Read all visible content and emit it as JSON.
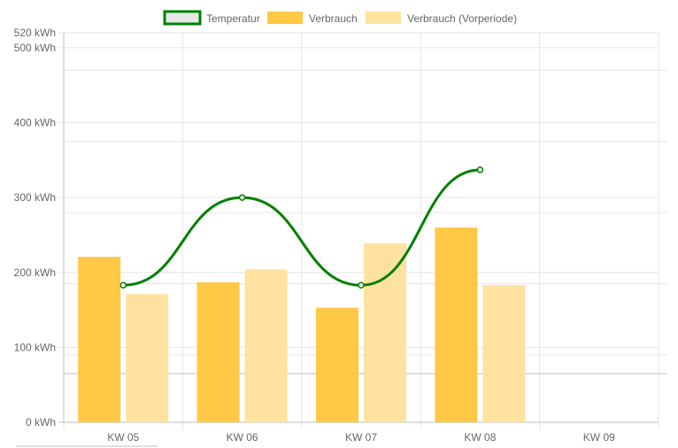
{
  "chart_data": {
    "type": "bar",
    "categories": [
      "KW 05",
      "KW 06",
      "KW 07",
      "KW 08",
      "KW 09"
    ],
    "series": [
      {
        "name": "Temperatur",
        "type": "line",
        "values": [
          183,
          300,
          183,
          337,
          null
        ],
        "color": "#008000"
      },
      {
        "name": "Verbrauch",
        "type": "bar",
        "values": [
          221,
          187,
          153,
          260,
          null
        ],
        "color": "#FFC845"
      },
      {
        "name": "Verbrauch (Vorperiode)",
        "type": "bar",
        "values": [
          171,
          204,
          239,
          183,
          null
        ],
        "color": "#FFE29F"
      }
    ],
    "y_ticks": [
      "0 kWh",
      "100 kWh",
      "200 kWh",
      "300 kWh",
      "400 kWh",
      "500 kWh",
      "520 kWh"
    ],
    "ylim": [
      0,
      520
    ],
    "legend_position": "top",
    "grid": true
  },
  "colors": {
    "grid": "#e6e6e6",
    "axis": "#bdbdbd",
    "line_point_fill": "#ffffff",
    "legend_line_fill": "#e8e8e8"
  }
}
